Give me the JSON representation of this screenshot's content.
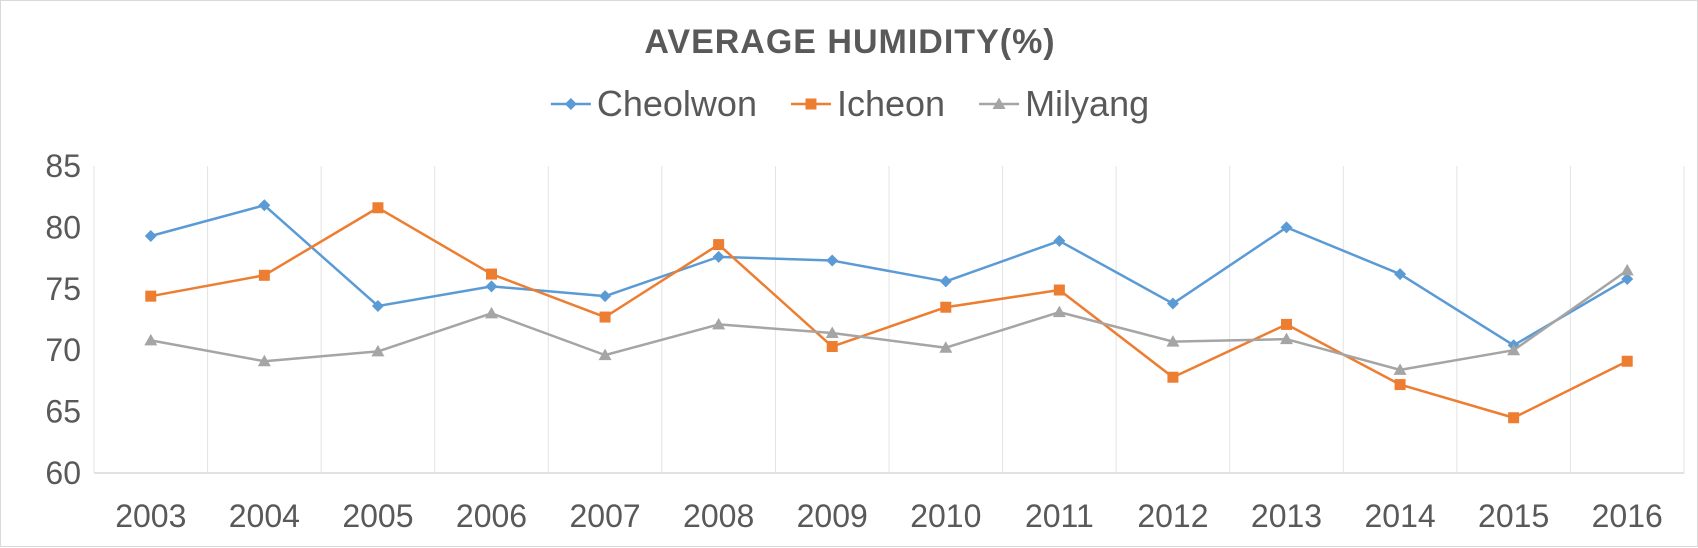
{
  "chart_data": {
    "type": "line",
    "title": "AVERAGE HUMIDITY(%)",
    "xlabel": "",
    "ylabel": "",
    "categories": [
      "2003",
      "2004",
      "2005",
      "2006",
      "2007",
      "2008",
      "2009",
      "2010",
      "2011",
      "2012",
      "2013",
      "2014",
      "2015",
      "2016"
    ],
    "ylim": [
      60,
      85
    ],
    "yticks": [
      "60",
      "65",
      "70",
      "75",
      "80",
      "85"
    ],
    "grid": "vertical",
    "legend": "top",
    "series": [
      {
        "name": "Cheolwon",
        "color": "#5b9bd5",
        "marker": "diamond",
        "values": [
          79.3,
          81.8,
          73.6,
          75.2,
          74.4,
          77.6,
          77.3,
          75.6,
          78.9,
          73.8,
          80.0,
          76.2,
          70.4,
          75.8
        ]
      },
      {
        "name": "Icheon",
        "color": "#ed7d31",
        "marker": "square",
        "values": [
          74.4,
          76.1,
          81.6,
          76.2,
          72.7,
          78.6,
          70.3,
          73.5,
          74.9,
          67.8,
          72.1,
          67.2,
          64.5,
          69.1
        ]
      },
      {
        "name": "Milyang",
        "color": "#a5a5a5",
        "marker": "triangle",
        "values": [
          70.8,
          69.1,
          69.9,
          73.0,
          69.6,
          72.1,
          71.4,
          70.2,
          73.1,
          70.7,
          70.9,
          68.4,
          70.0,
          76.5
        ]
      }
    ]
  }
}
